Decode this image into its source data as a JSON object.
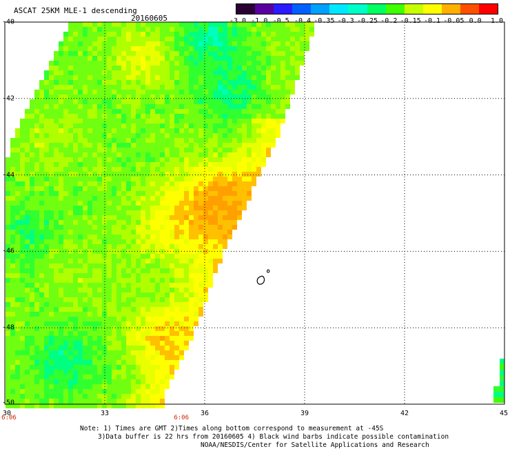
{
  "header": {
    "title": "ASCAT 25KM MLE-1 descending",
    "date": "20160605"
  },
  "colorbar": {
    "labels": [
      "-3.0",
      "-1.0",
      "-0.5",
      "-0.4",
      "-0.35",
      "-0.3",
      "-0.25",
      "-0.2",
      "-0.15",
      "-0.1",
      "-0.05",
      "0.0",
      "1.0"
    ],
    "colors": [
      "#2a0033",
      "#5a00a0",
      "#2a1cff",
      "#0060ff",
      "#00a0ff",
      "#00e8ff",
      "#00ffc8",
      "#00ff60",
      "#40ff00",
      "#c8ff00",
      "#ffff00",
      "#ffb000",
      "#ff5000",
      "#ff0000"
    ]
  },
  "axes": {
    "lat_labels": [
      "-40",
      "-42",
      "-44",
      "-46",
      "-48",
      "-50"
    ],
    "lon_labels": [
      "30",
      "33",
      "36",
      "39",
      "42",
      "45"
    ],
    "lat_range": [
      -50,
      -40
    ],
    "lon_range": [
      30,
      45
    ]
  },
  "time_labels": [
    {
      "text": "6:06",
      "lon": 30
    },
    {
      "text": "6:06",
      "lon": 35.3
    }
  ],
  "notes": {
    "line1": "Note: 1) Times are GMT 2)Times along bottom correspond to measurement at -45S",
    "line2": "3)Data buffer is 22 hrs from 20160605 4) Black wind barbs indicate possible contamination",
    "line3": "NOAA/NESDIS/Center for Satellite Applications and Research"
  }
}
